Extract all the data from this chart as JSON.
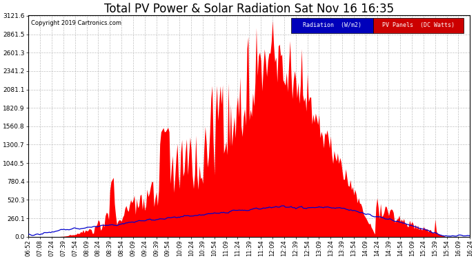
{
  "title": "Total PV Power & Solar Radiation Sat Nov 16 16:35",
  "copyright": "Copyright 2019 Cartronics.com",
  "legend_radiation_label": "Radiation  (W/m2)",
  "legend_pv_label": "PV Panels  (DC Watts)",
  "yticks": [
    0.0,
    260.1,
    520.3,
    780.4,
    1040.5,
    1300.7,
    1560.8,
    1820.9,
    2081.1,
    2341.2,
    2601.3,
    2861.5,
    3121.6
  ],
  "ymax": 3121.6,
  "background_color": "#ffffff",
  "plot_bg_color": "#ffffff",
  "grid_color": "#b0b0b0",
  "pv_fill_color": "#ff0000",
  "radiation_line_color": "#0000cc",
  "title_fontsize": 12,
  "xtick_labels": [
    "06:52",
    "07:08",
    "07:24",
    "07:39",
    "07:54",
    "08:09",
    "08:24",
    "08:39",
    "08:54",
    "09:09",
    "09:24",
    "09:39",
    "09:54",
    "10:09",
    "10:24",
    "10:39",
    "10:54",
    "11:09",
    "11:24",
    "11:39",
    "11:54",
    "12:09",
    "12:24",
    "12:39",
    "12:54",
    "13:09",
    "13:24",
    "13:39",
    "13:54",
    "14:09",
    "14:24",
    "14:39",
    "14:54",
    "15:09",
    "15:24",
    "15:39",
    "15:54",
    "16:09",
    "16:24"
  ]
}
